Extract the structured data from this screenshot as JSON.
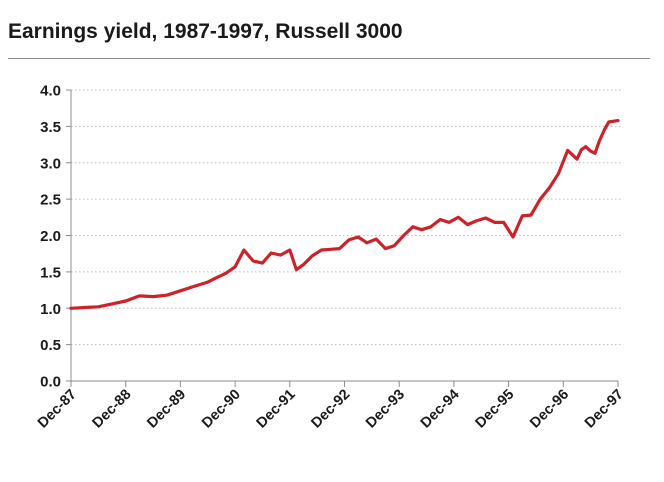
{
  "chart_data": {
    "type": "line",
    "title": "Earnings yield, 1987-1997, Russell 3000",
    "xlabel": "",
    "ylabel": "",
    "ylim": [
      0.0,
      4.0
    ],
    "y_ticks": [
      "0.0",
      "0.5",
      "1.0",
      "1.5",
      "2.0",
      "2.5",
      "3.0",
      "3.5",
      "4.0"
    ],
    "x_ticks": [
      "Dec-87",
      "Dec-88",
      "Dec-89",
      "Dec-90",
      "Dec-91",
      "Dec-92",
      "Dec-93",
      "Dec-94",
      "Dec-95",
      "Dec-96",
      "Dec-97"
    ],
    "grid": "horizontal dotted",
    "legend": "none",
    "line_color": "#cc2229",
    "series": [
      {
        "x": [
          1987.92,
          1988.17,
          1988.42,
          1988.67,
          1988.92,
          1989.17,
          1989.42,
          1989.67,
          1989.92,
          1990.17,
          1990.42,
          1990.58,
          1990.75,
          1990.92,
          1991.08,
          1991.25,
          1991.42,
          1991.58,
          1991.75,
          1991.92,
          1992.04,
          1992.17,
          1992.33,
          1992.5,
          1992.67,
          1992.83,
          1993.0,
          1993.17,
          1993.33,
          1993.5,
          1993.67,
          1993.83,
          1994.0,
          1994.17,
          1994.33,
          1994.5,
          1994.67,
          1994.83,
          1995.0,
          1995.17,
          1995.33,
          1995.5,
          1995.67,
          1995.83,
          1996.0,
          1996.17,
          1996.33,
          1996.5,
          1996.67,
          1996.83,
          1997.0,
          1997.17,
          1997.25,
          1997.33,
          1997.42,
          1997.5,
          1997.58,
          1997.67,
          1997.75,
          1997.92
        ],
        "values": [
          1.0,
          1.01,
          1.02,
          1.06,
          1.1,
          1.17,
          1.16,
          1.18,
          1.24,
          1.3,
          1.36,
          1.42,
          1.48,
          1.57,
          1.8,
          1.65,
          1.62,
          1.76,
          1.73,
          1.8,
          1.53,
          1.6,
          1.72,
          1.8,
          1.81,
          1.82,
          1.94,
          1.98,
          1.9,
          1.95,
          1.82,
          1.86,
          2.0,
          2.12,
          2.08,
          2.12,
          2.22,
          2.18,
          2.25,
          2.15,
          2.2,
          2.24,
          2.18,
          2.18,
          1.98,
          2.27,
          2.28,
          2.5,
          2.66,
          2.85,
          3.17,
          3.05,
          3.18,
          3.22,
          3.16,
          3.13,
          3.3,
          3.45,
          3.56,
          3.58
        ]
      }
    ]
  }
}
